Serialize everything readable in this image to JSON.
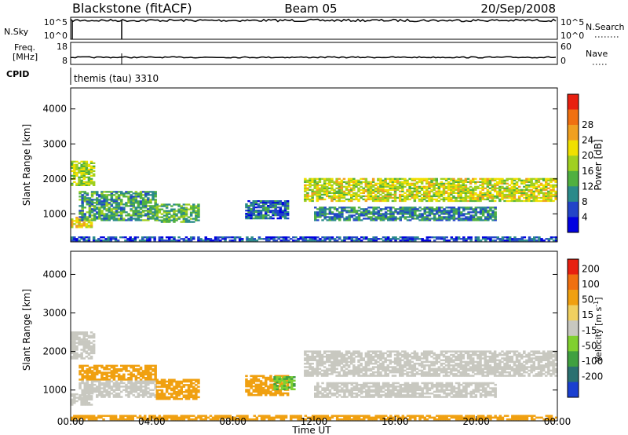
{
  "header": {
    "station": "Blackstone (fitACF)",
    "beam": "Beam 05",
    "date": "20/Sep/2008"
  },
  "sky_panel": {
    "left_label": "N.Sky",
    "right_label": "N.Search",
    "left_ticks": [
      "10^5",
      "10^0"
    ],
    "right_ticks": [
      "10^5",
      "10^0"
    ]
  },
  "freq_panel": {
    "left_label_line1": "Freq.",
    "left_label_line2": "[MHz]",
    "right_label": "Nave",
    "left_ticks": [
      "18",
      "8"
    ],
    "right_ticks": [
      "60",
      "0"
    ]
  },
  "cpid": {
    "label": "CPID",
    "value": "themis (tau) 3310"
  },
  "chart_data": [
    {
      "type": "heatmap",
      "name": "power",
      "ylabel": "Slant Range [km]",
      "xlabel": "",
      "ylim": [
        200,
        4600
      ],
      "y_ticks": [
        "1000",
        "2000",
        "3000",
        "4000"
      ],
      "colorbar": {
        "label": "Power [dB]",
        "ticks": [
          "4",
          "8",
          "12",
          "16",
          "20",
          "24",
          "28"
        ],
        "colors": [
          "#0000e0",
          "#2244c8",
          "#2a8a8a",
          "#50b040",
          "#a0d020",
          "#f0e000",
          "#f0a020",
          "#f07010",
          "#e82010"
        ]
      },
      "regions": [
        {
          "t0": 0.0,
          "t1": 1.2,
          "r0": 1800,
          "r1": 2500,
          "v": 18
        },
        {
          "t0": 0.0,
          "t1": 1.0,
          "r0": 600,
          "r1": 900,
          "v": 22
        },
        {
          "t0": 0.4,
          "t1": 4.2,
          "r0": 800,
          "r1": 1650,
          "v": 12
        },
        {
          "t0": 4.2,
          "t1": 6.3,
          "r0": 750,
          "r1": 1250,
          "v": 14
        },
        {
          "t0": 8.6,
          "t1": 10.7,
          "r0": 850,
          "r1": 1350,
          "v": 8
        },
        {
          "t0": 11.5,
          "t1": 23.9,
          "r0": 1350,
          "r1": 2000,
          "v": 20
        },
        {
          "t0": 12.0,
          "t1": 21.0,
          "r0": 800,
          "r1": 1200,
          "v": 10
        },
        {
          "t0": 0.0,
          "t1": 23.9,
          "r0": 220,
          "r1": 330,
          "v": 6
        }
      ]
    },
    {
      "type": "heatmap",
      "name": "velocity",
      "ylabel": "Slant Range [km]",
      "xlabel": "Time UT",
      "ylim": [
        200,
        4600
      ],
      "y_ticks": [
        "1000",
        "2000",
        "3000",
        "4000"
      ],
      "x_ticks": [
        "00:00",
        "04:00",
        "08:00",
        "12:00",
        "16:00",
        "20:00",
        "00:00"
      ],
      "colorbar": {
        "label": "Velocity [m s-1]",
        "ticks": [
          "200",
          "100",
          "50",
          "15",
          "-15",
          "-50",
          "-100",
          "-200"
        ],
        "colors": [
          "#1a3fd0",
          "#2a7070",
          "#40a040",
          "#80d030",
          "#c8c8c0",
          "#f0d060",
          "#f0a010",
          "#f07010",
          "#e82010"
        ]
      },
      "regions": [
        {
          "t0": 0.0,
          "t1": 1.2,
          "r0": 1800,
          "r1": 2500,
          "v": 0
        },
        {
          "t0": 0.0,
          "t1": 1.0,
          "r0": 600,
          "r1": 900,
          "v": 0
        },
        {
          "t0": 0.4,
          "t1": 4.2,
          "r0": 1250,
          "r1": 1650,
          "v": -60
        },
        {
          "t0": 0.4,
          "t1": 4.2,
          "r0": 800,
          "r1": 1250,
          "v": 0
        },
        {
          "t0": 4.2,
          "t1": 6.3,
          "r0": 750,
          "r1": 1250,
          "v": -40
        },
        {
          "t0": 8.6,
          "t1": 10.7,
          "r0": 850,
          "r1": 1350,
          "v": -40
        },
        {
          "t0": 10.0,
          "t1": 11.0,
          "r0": 1000,
          "r1": 1350,
          "v": 30
        },
        {
          "t0": 11.5,
          "t1": 23.9,
          "r0": 1350,
          "r1": 2000,
          "v": 0
        },
        {
          "t0": 12.0,
          "t1": 21.0,
          "r0": 800,
          "r1": 1200,
          "v": 0
        },
        {
          "t0": 0.0,
          "t1": 23.9,
          "r0": 220,
          "r1": 330,
          "v": -40
        }
      ]
    }
  ]
}
